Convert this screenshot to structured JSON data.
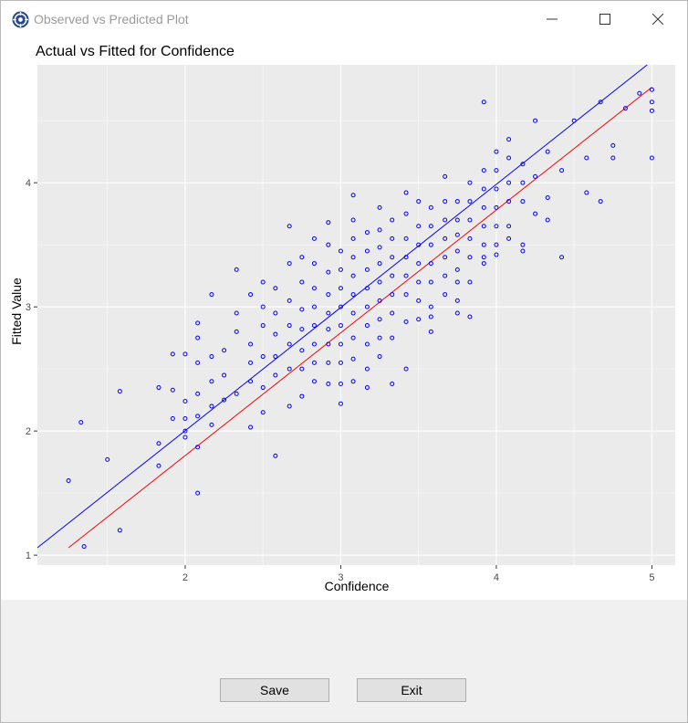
{
  "window": {
    "title": "Observed vs Predicted Plot"
  },
  "icons": {
    "app": "app-logo-icon",
    "minimize": "minimize-icon",
    "maximize": "maximize-icon",
    "close": "close-icon"
  },
  "buttons": {
    "save": "Save",
    "exit": "Exit"
  },
  "chart_data": {
    "type": "scatter",
    "title": "Actual vs Fitted for Confidence",
    "xlabel": "Confidence",
    "ylabel": "Fitted Value",
    "xlim": [
      1.05,
      5.15
    ],
    "ylim": [
      0.92,
      4.95
    ],
    "xticks": [
      "2",
      "3",
      "4",
      "5"
    ],
    "yticks": [
      "1",
      "2",
      "3",
      "4"
    ],
    "grid": true,
    "background": "#ebebeb",
    "point_color": "#0000ff",
    "lines": [
      {
        "color": "#0000ff",
        "x": [
          1.05,
          4.97
        ],
        "y": [
          1.06,
          4.95
        ]
      },
      {
        "color": "#ff0000",
        "x": [
          1.25,
          5.0
        ],
        "y": [
          1.06,
          4.77
        ]
      }
    ],
    "points": {
      "x": [
        1.25,
        1.33,
        1.35,
        1.5,
        1.58,
        1.58,
        1.83,
        1.83,
        1.83,
        1.92,
        1.92,
        1.92,
        2.0,
        2.0,
        2.0,
        2.0,
        2.0,
        2.08,
        2.08,
        2.08,
        2.08,
        2.08,
        2.08,
        2.08,
        2.17,
        2.17,
        2.17,
        2.17,
        2.17,
        2.25,
        2.25,
        2.25,
        2.33,
        2.33,
        2.33,
        2.33,
        2.42,
        2.42,
        2.42,
        2.42,
        2.42,
        2.5,
        2.5,
        2.5,
        2.5,
        2.5,
        2.5,
        2.58,
        2.58,
        2.58,
        2.58,
        2.58,
        2.58,
        2.67,
        2.67,
        2.67,
        2.67,
        2.67,
        2.67,
        2.67,
        2.75,
        2.75,
        2.75,
        2.75,
        2.75,
        2.75,
        2.75,
        2.83,
        2.83,
        2.83,
        2.83,
        2.83,
        2.83,
        2.83,
        2.83,
        2.92,
        2.92,
        2.92,
        2.92,
        2.92,
        2.92,
        2.92,
        2.92,
        2.92,
        3.0,
        3.0,
        3.0,
        3.0,
        3.0,
        3.0,
        3.0,
        3.0,
        3.0,
        3.08,
        3.08,
        3.08,
        3.08,
        3.08,
        3.08,
        3.08,
        3.08,
        3.08,
        3.08,
        3.17,
        3.17,
        3.17,
        3.17,
        3.17,
        3.17,
        3.17,
        3.17,
        3.17,
        3.25,
        3.25,
        3.25,
        3.25,
        3.25,
        3.25,
        3.25,
        3.25,
        3.25,
        3.33,
        3.33,
        3.33,
        3.33,
        3.33,
        3.33,
        3.33,
        3.33,
        3.42,
        3.42,
        3.42,
        3.42,
        3.42,
        3.42,
        3.42,
        3.42,
        3.5,
        3.5,
        3.5,
        3.5,
        3.5,
        3.5,
        3.5,
        3.58,
        3.58,
        3.58,
        3.58,
        3.58,
        3.58,
        3.58,
        3.58,
        3.67,
        3.67,
        3.67,
        3.67,
        3.67,
        3.67,
        3.67,
        3.75,
        3.75,
        3.75,
        3.75,
        3.75,
        3.75,
        3.75,
        3.75,
        3.83,
        3.83,
        3.83,
        3.83,
        3.83,
        3.83,
        3.83,
        3.92,
        3.92,
        3.92,
        3.92,
        3.92,
        3.92,
        3.92,
        3.92,
        4.0,
        4.0,
        4.0,
        4.0,
        4.0,
        4.0,
        4.0,
        4.08,
        4.08,
        4.08,
        4.08,
        4.08,
        4.08,
        4.17,
        4.17,
        4.17,
        4.17,
        4.17,
        4.25,
        4.25,
        4.25,
        4.33,
        4.33,
        4.33,
        4.42,
        4.42,
        4.5,
        4.58,
        4.58,
        4.67,
        4.67,
        4.75,
        4.75,
        4.83,
        4.92,
        5.0,
        5.0,
        5.0,
        5.0
      ],
      "y": [
        1.6,
        2.07,
        1.07,
        1.77,
        2.32,
        1.2,
        2.35,
        1.9,
        1.72,
        2.62,
        2.33,
        2.1,
        2.62,
        2.24,
        2.1,
        2.0,
        1.95,
        2.87,
        2.75,
        2.55,
        2.3,
        2.12,
        1.87,
        1.5,
        3.1,
        2.6,
        2.4,
        2.2,
        2.05,
        2.65,
        2.45,
        2.25,
        3.3,
        2.95,
        2.8,
        2.3,
        3.1,
        2.7,
        2.55,
        2.4,
        2.03,
        3.2,
        3.0,
        2.85,
        2.6,
        2.35,
        2.15,
        3.15,
        2.95,
        2.78,
        2.6,
        2.45,
        1.8,
        3.65,
        3.35,
        3.05,
        2.85,
        2.7,
        2.5,
        2.2,
        3.4,
        3.2,
        2.98,
        2.82,
        2.65,
        2.5,
        2.28,
        3.55,
        3.35,
        3.15,
        3.0,
        2.85,
        2.7,
        2.55,
        2.4,
        3.68,
        3.5,
        3.28,
        3.1,
        2.95,
        2.82,
        2.7,
        2.55,
        2.38,
        3.45,
        3.3,
        3.15,
        3.0,
        2.85,
        2.7,
        2.55,
        2.38,
        2.22,
        3.9,
        3.7,
        3.55,
        3.4,
        3.25,
        3.1,
        2.95,
        2.75,
        2.58,
        2.4,
        3.6,
        3.45,
        3.3,
        3.15,
        3.0,
        2.85,
        2.7,
        2.5,
        2.35,
        3.8,
        3.62,
        3.48,
        3.35,
        3.2,
        3.05,
        2.9,
        2.75,
        2.6,
        3.7,
        3.55,
        3.4,
        3.25,
        3.1,
        2.95,
        2.75,
        2.38,
        3.92,
        3.75,
        3.55,
        3.4,
        3.25,
        3.1,
        2.88,
        2.5,
        3.85,
        3.65,
        3.5,
        3.35,
        3.2,
        3.05,
        2.9,
        3.8,
        3.65,
        3.5,
        3.35,
        3.2,
        3.0,
        2.92,
        2.8,
        4.05,
        3.85,
        3.7,
        3.55,
        3.4,
        3.25,
        3.1,
        3.85,
        3.7,
        3.58,
        3.45,
        3.3,
        3.2,
        3.05,
        2.95,
        4.0,
        3.85,
        3.7,
        3.55,
        3.4,
        3.2,
        2.92,
        4.65,
        4.1,
        3.95,
        3.8,
        3.65,
        3.5,
        3.4,
        3.35,
        4.25,
        4.1,
        3.95,
        3.8,
        3.65,
        3.5,
        3.42,
        4.35,
        4.2,
        4.0,
        3.85,
        3.65,
        3.55,
        4.15,
        4.0,
        3.85,
        3.5,
        3.45,
        4.5,
        4.05,
        3.75,
        4.25,
        3.88,
        3.7,
        4.1,
        3.4,
        4.5,
        4.2,
        3.92,
        4.65,
        3.85,
        4.3,
        4.2,
        4.6,
        4.72,
        4.75,
        4.65,
        4.58,
        4.2
      ]
    }
  }
}
